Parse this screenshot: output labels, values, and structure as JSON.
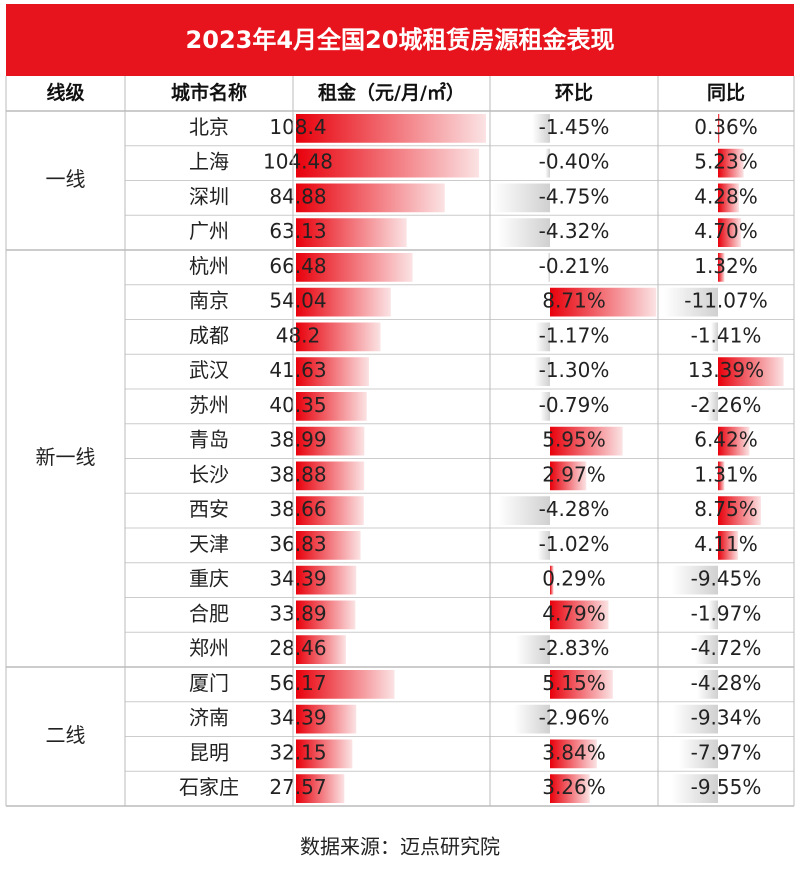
{
  "title": "2023年4月全国20城租赁房源租金表现",
  "header": [
    "线级",
    "城市名称",
    "租金（元/月/㎡）",
    "环比",
    "同比"
  ],
  "tiers": [
    {
      "label": "一线",
      "rows": [
        {
          "city": "北京",
          "rent": "108.4",
          "mom": "-1.45%",
          "yoy": "0.36%"
        },
        {
          "city": "上海",
          "rent": "104.48",
          "mom": "-0.40%",
          "yoy": "5.23%"
        },
        {
          "city": "深圳",
          "rent": "84.88",
          "mom": "-4.75%",
          "yoy": "4.28%"
        },
        {
          "city": "广州",
          "rent": "63.13",
          "mom": "-4.32%",
          "yoy": "4.70%"
        }
      ]
    },
    {
      "label": "新一线",
      "rows": [
        {
          "city": "杭州",
          "rent": "66.48",
          "mom": "-0.21%",
          "yoy": "1.32%"
        },
        {
          "city": "南京",
          "rent": "54.04",
          "mom": "8.71%",
          "yoy": "-11.07%"
        },
        {
          "city": "成都",
          "rent": "48.2",
          "mom": "-1.17%",
          "yoy": "-1.41%"
        },
        {
          "city": "武汉",
          "rent": "41.63",
          "mom": "-1.30%",
          "yoy": "13.39%"
        },
        {
          "city": "苏州",
          "rent": "40.35",
          "mom": "-0.79%",
          "yoy": "-2.26%"
        },
        {
          "city": "青岛",
          "rent": "38.99",
          "mom": "5.95%",
          "yoy": "6.42%"
        },
        {
          "city": "长沙",
          "rent": "38.88",
          "mom": "2.97%",
          "yoy": "1.31%"
        },
        {
          "city": "西安",
          "rent": "38.66",
          "mom": "-4.28%",
          "yoy": "8.75%"
        },
        {
          "city": "天津",
          "rent": "36.83",
          "mom": "-1.02%",
          "yoy": "4.11%"
        },
        {
          "city": "重庆",
          "rent": "34.39",
          "mom": "0.29%",
          "yoy": "-9.45%"
        },
        {
          "city": "合肥",
          "rent": "33.89",
          "mom": "4.79%",
          "yoy": "-1.97%"
        },
        {
          "city": "郑州",
          "rent": "28.46",
          "mom": "-2.83%",
          "yoy": "-4.72%"
        }
      ]
    },
    {
      "label": "二线",
      "rows": [
        {
          "city": "厦门",
          "rent": "56.17",
          "mom": "5.15%",
          "yoy": "-4.28%"
        },
        {
          "city": "济南",
          "rent": "34.39",
          "mom": "-2.96%",
          "yoy": "-9.34%"
        },
        {
          "city": "昆明",
          "rent": "32.15",
          "mom": "3.84%",
          "yoy": "-7.97%"
        },
        {
          "city": "石家庄",
          "rent": "27.57",
          "mom": "3.26%",
          "yoy": "-9.55%"
        }
      ]
    }
  ],
  "source": "数据来源：迈点研究院"
}
